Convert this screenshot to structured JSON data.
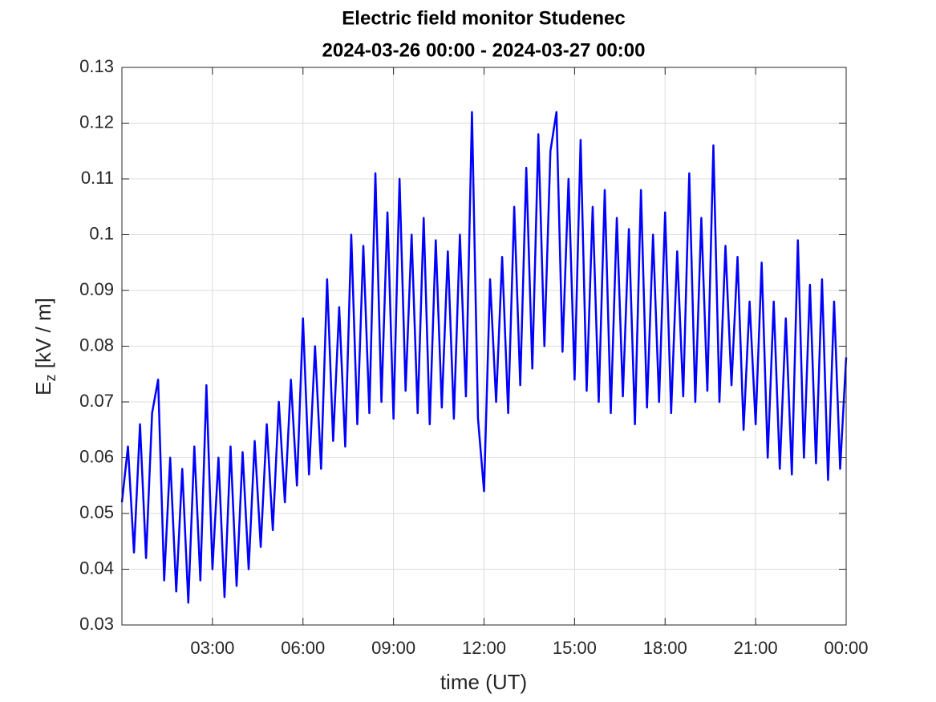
{
  "chart_data": {
    "type": "line",
    "title": [
      "Electric field monitor Studenec",
      "2024-03-26 00:00 - 2024-03-27 00:00"
    ],
    "xlabel": "time (UT)",
    "ylabel": {
      "main": "E",
      "sub": "z",
      "rest": " [kV / m]"
    },
    "xlim": [
      0,
      24
    ],
    "xticks": [
      {
        "value": 3,
        "label": "03:00"
      },
      {
        "value": 6,
        "label": "06:00"
      },
      {
        "value": 9,
        "label": "09:00"
      },
      {
        "value": 12,
        "label": "12:00"
      },
      {
        "value": 15,
        "label": "15:00"
      },
      {
        "value": 18,
        "label": "18:00"
      },
      {
        "value": 21,
        "label": "21:00"
      },
      {
        "value": 24,
        "label": "00:00"
      }
    ],
    "ylim": [
      0.03,
      0.13
    ],
    "yticks": [
      0.03,
      0.04,
      0.05,
      0.06,
      0.07,
      0.08,
      0.09,
      0.1,
      0.11,
      0.12,
      0.13
    ],
    "grid": true,
    "x": [
      0,
      0.2,
      0.4,
      0.6,
      0.8,
      1,
      1.2,
      1.4,
      1.6,
      1.8,
      2,
      2.2,
      2.4,
      2.6,
      2.8,
      3,
      3.2,
      3.4,
      3.6,
      3.8,
      4,
      4.2,
      4.4,
      4.6,
      4.8,
      5,
      5.2,
      5.4,
      5.6,
      5.8,
      6,
      6.2,
      6.4,
      6.6,
      6.8,
      7,
      7.2,
      7.4,
      7.6,
      7.8,
      8,
      8.2,
      8.4,
      8.6,
      8.8,
      9,
      9.2,
      9.4,
      9.6,
      9.8,
      10,
      10.2,
      10.4,
      10.6,
      10.8,
      11,
      11.2,
      11.4,
      11.6,
      11.8,
      12,
      12.2,
      12.4,
      12.6,
      12.8,
      13,
      13.2,
      13.4,
      13.6,
      13.8,
      14,
      14.2,
      14.4,
      14.6,
      14.8,
      15,
      15.2,
      15.4,
      15.6,
      15.8,
      16,
      16.2,
      16.4,
      16.6,
      16.8,
      17,
      17.2,
      17.4,
      17.6,
      17.8,
      18,
      18.2,
      18.4,
      18.6,
      18.8,
      19,
      19.2,
      19.4,
      19.6,
      19.8,
      20,
      20.2,
      20.4,
      20.6,
      20.8,
      21,
      21.2,
      21.4,
      21.6,
      21.8,
      22,
      22.2,
      22.4,
      22.6,
      22.8,
      23,
      23.2,
      23.4,
      23.6,
      23.8,
      24
    ],
    "series": [
      {
        "color": "#0000ff",
        "values": [
          0.052,
          0.062,
          0.043,
          0.066,
          0.042,
          0.068,
          0.074,
          0.038,
          0.06,
          0.036,
          0.058,
          0.034,
          0.062,
          0.038,
          0.073,
          0.04,
          0.06,
          0.035,
          0.062,
          0.037,
          0.061,
          0.04,
          0.063,
          0.044,
          0.066,
          0.047,
          0.07,
          0.052,
          0.074,
          0.055,
          0.085,
          0.057,
          0.08,
          0.058,
          0.092,
          0.063,
          0.087,
          0.062,
          0.1,
          0.066,
          0.098,
          0.068,
          0.111,
          0.07,
          0.104,
          0.067,
          0.11,
          0.072,
          0.1,
          0.068,
          0.103,
          0.066,
          0.099,
          0.069,
          0.097,
          0.067,
          0.1,
          0.071,
          0.122,
          0.067,
          0.054,
          0.092,
          0.07,
          0.096,
          0.068,
          0.105,
          0.073,
          0.112,
          0.076,
          0.118,
          0.08,
          0.115,
          0.122,
          0.079,
          0.11,
          0.074,
          0.117,
          0.072,
          0.105,
          0.07,
          0.108,
          0.068,
          0.103,
          0.071,
          0.101,
          0.066,
          0.108,
          0.069,
          0.1,
          0.07,
          0.104,
          0.068,
          0.097,
          0.071,
          0.111,
          0.07,
          0.103,
          0.072,
          0.116,
          0.07,
          0.098,
          0.073,
          0.096,
          0.065,
          0.088,
          0.066,
          0.095,
          0.06,
          0.088,
          0.058,
          0.085,
          0.057,
          0.099,
          0.06,
          0.091,
          0.059,
          0.092,
          0.056,
          0.088,
          0.058,
          0.078
        ]
      }
    ]
  }
}
